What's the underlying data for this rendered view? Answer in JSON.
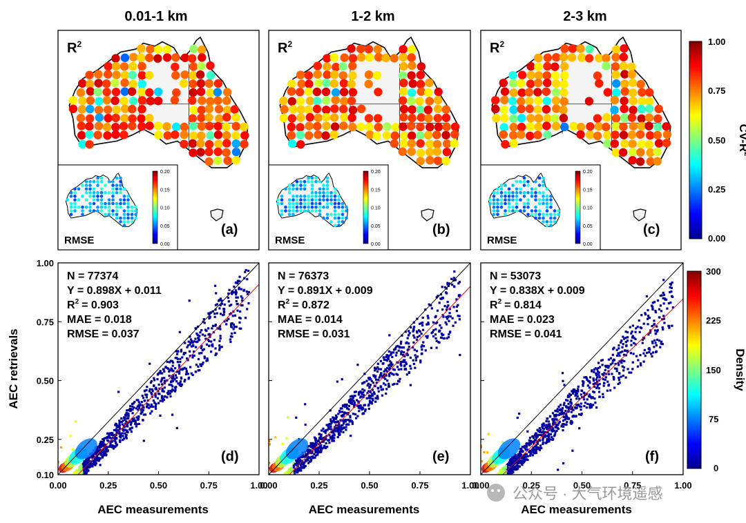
{
  "column_titles": [
    "0.01-1 km",
    "1-2 km",
    "2-3 km"
  ],
  "map_panels": [
    {
      "id": "a",
      "label": "(a)",
      "r2_label": "R",
      "r2_sup": "2",
      "inset_label": "RMSE"
    },
    {
      "id": "b",
      "label": "(b)",
      "r2_label": "R",
      "r2_sup": "2",
      "inset_label": "RMSE"
    },
    {
      "id": "c",
      "label": "(c)",
      "r2_label": "R",
      "r2_sup": "2",
      "inset_label": "RMSE"
    }
  ],
  "inset_colorbar_ticks": [
    "0.20",
    "0.15",
    "0.10",
    "0.05",
    "0.00"
  ],
  "cv_colorbar": {
    "title_main": "CV-R",
    "title_sup": "2",
    "ticks": [
      "1.00",
      "0.75",
      "0.50",
      "0.25",
      "0.00"
    ],
    "range": [
      0,
      1
    ]
  },
  "density_colorbar": {
    "title": "Density",
    "ticks": [
      "300",
      "225",
      "150",
      "75",
      "0"
    ],
    "range": [
      0,
      300
    ]
  },
  "watermark": "公众号 · 大气环境遥感",
  "chart_data": [
    {
      "type": "scatter",
      "panel": "(d)",
      "xlabel": "AEC measurements",
      "ylabel": "AEC retrievals",
      "xlim": [
        0,
        1
      ],
      "ylim": [
        0.1,
        1
      ],
      "xticks": [
        "0.00",
        "0.25",
        "0.50",
        "0.75",
        "1.00"
      ],
      "yticks": [
        "0.10",
        "0.25",
        "0.50",
        "0.75",
        "1.00"
      ],
      "stats": [
        "N = 77374",
        "Y = 0.898X + 0.011",
        "R",
        "= 0.903",
        "MAE = 0.018",
        "RMSE = 0.037"
      ],
      "fit": {
        "slope": 0.898,
        "intercept": 0.011
      },
      "n": 77374,
      "r2": 0.903,
      "mae": 0.018,
      "rmse": 0.037,
      "one_to_one": true
    },
    {
      "type": "scatter",
      "panel": "(e)",
      "xlabel": "AEC measurements",
      "ylabel": "",
      "xlim": [
        0,
        1
      ],
      "ylim": [
        0.1,
        1
      ],
      "xticks": [
        "0.00",
        "0.25",
        "0.50",
        "0.75",
        "1.00"
      ],
      "yticks": [],
      "stats": [
        "N = 76373",
        "Y = 0.891X + 0.009",
        "R",
        "= 0.872",
        "MAE = 0.014",
        "RMSE = 0.031"
      ],
      "fit": {
        "slope": 0.891,
        "intercept": 0.009
      },
      "n": 76373,
      "r2": 0.872,
      "mae": 0.014,
      "rmse": 0.031,
      "one_to_one": true
    },
    {
      "type": "scatter",
      "panel": "(f)",
      "xlabel": "AEC measurements",
      "ylabel": "",
      "xlim": [
        0,
        1
      ],
      "ylim": [
        0.1,
        1
      ],
      "xticks": [
        "0.00",
        "0.25",
        "0.50",
        "0.75",
        "1.00"
      ],
      "yticks": [],
      "stats": [
        "N = 53073",
        "Y = 0.838X + 0.009",
        "R",
        "= 0.814",
        "MAE = 0.023",
        "RMSE = 0.041"
      ],
      "fit": {
        "slope": 0.838,
        "intercept": 0.009
      },
      "n": 53073,
      "r2": 0.814,
      "mae": 0.023,
      "rmse": 0.041,
      "one_to_one": true
    }
  ]
}
